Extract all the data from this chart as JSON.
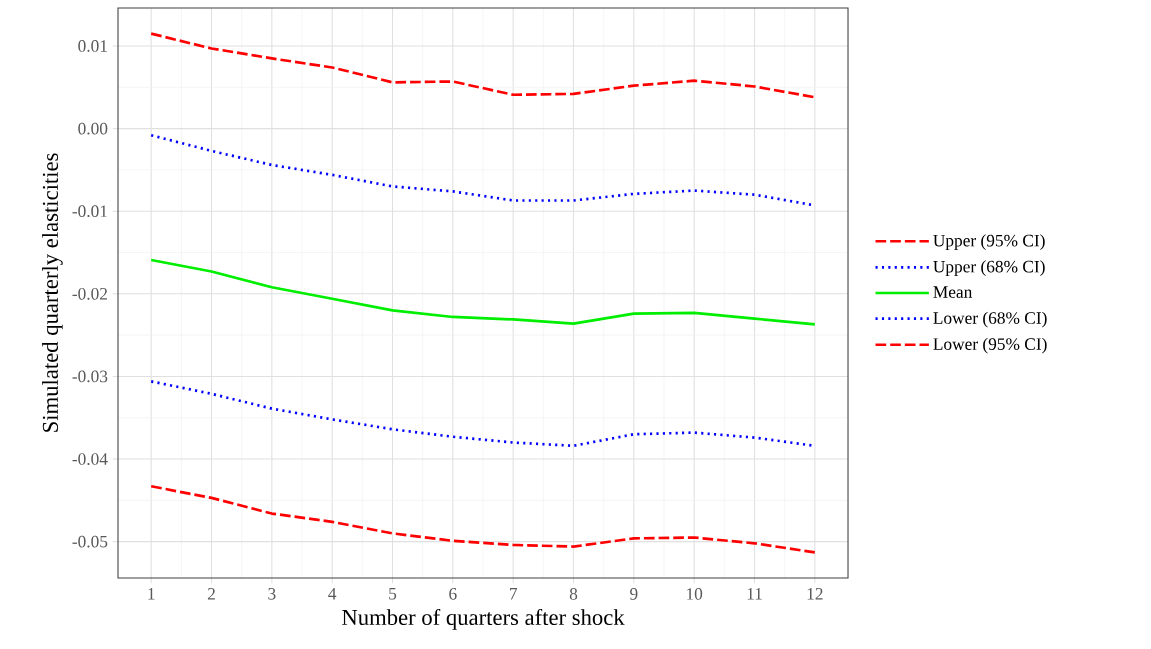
{
  "chart_data": {
    "type": "line",
    "xlabel": "Number of quarters after shock",
    "ylabel": "Simulated quarterly elasticities",
    "x": [
      1,
      2,
      3,
      4,
      5,
      6,
      7,
      8,
      9,
      10,
      11,
      12
    ],
    "series": [
      {
        "name": "Upper (95% CI)",
        "color": "#ff0000",
        "line_style": "dashed",
        "values": [
          0.0115,
          0.0097,
          0.0085,
          0.0074,
          0.0056,
          0.0057,
          0.0041,
          0.0042,
          0.0052,
          0.0058,
          0.0051,
          0.0038
        ]
      },
      {
        "name": "Upper (68% CI)",
        "color": "#0000ff",
        "line_style": "dotted",
        "values": [
          -0.0008,
          -0.0027,
          -0.0044,
          -0.0056,
          -0.007,
          -0.0076,
          -0.0087,
          -0.0087,
          -0.0079,
          -0.0075,
          -0.008,
          -0.0093
        ]
      },
      {
        "name": "Mean",
        "color": "#00ee00",
        "line_style": "solid",
        "values": [
          -0.0159,
          -0.0173,
          -0.0192,
          -0.0206,
          -0.022,
          -0.0228,
          -0.0231,
          -0.0236,
          -0.0224,
          -0.0223,
          -0.023,
          -0.0237
        ]
      },
      {
        "name": "Lower (68% CI)",
        "color": "#0000ff",
        "line_style": "dotted",
        "values": [
          -0.0306,
          -0.0321,
          -0.0339,
          -0.0352,
          -0.0364,
          -0.0373,
          -0.038,
          -0.0384,
          -0.037,
          -0.0368,
          -0.0374,
          -0.0384
        ]
      },
      {
        "name": "Lower (95% CI)",
        "color": "#ff0000",
        "line_style": "dashed",
        "values": [
          -0.0433,
          -0.0447,
          -0.0466,
          -0.0476,
          -0.049,
          -0.0499,
          -0.0504,
          -0.0506,
          -0.0496,
          -0.0495,
          -0.0502,
          -0.0513
        ]
      }
    ],
    "xlim": [
      0.45,
      12.55
    ],
    "ylim": [
      -0.0544,
      0.0146
    ],
    "xticks": [
      1,
      2,
      3,
      4,
      5,
      6,
      7,
      8,
      9,
      10,
      11,
      12
    ],
    "yticks": [
      {
        "value": -0.05,
        "label": "-0.05"
      },
      {
        "value": -0.04,
        "label": "-0.04"
      },
      {
        "value": -0.03,
        "label": "-0.03"
      },
      {
        "value": -0.02,
        "label": "-0.02"
      },
      {
        "value": -0.01,
        "label": "-0.01"
      },
      {
        "value": 0,
        "label": "0.00"
      },
      {
        "value": 0.01,
        "label": "0.01"
      }
    ],
    "grid": true,
    "legend": "right"
  }
}
